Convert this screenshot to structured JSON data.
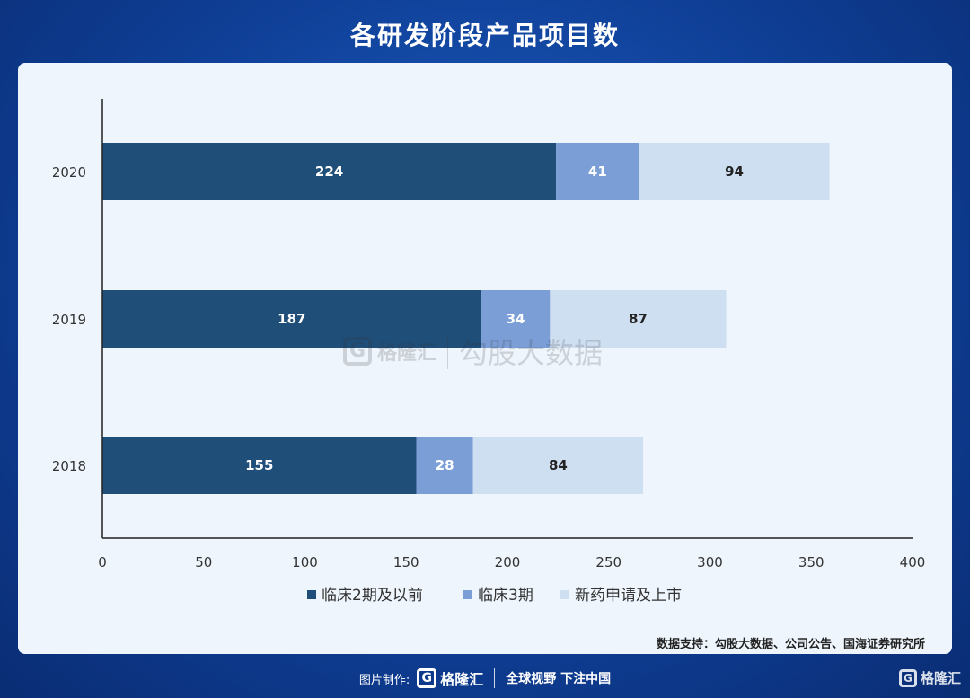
{
  "title": "各研发阶段产品项目数",
  "source": "数据支持：勾股大数据、公司公告、国海证券研究所",
  "watermark": {
    "brand": "格隆汇",
    "text": "勾股大数据"
  },
  "footer": {
    "made_by": "图片制作:",
    "brand": "格隆汇",
    "slogan": "全球视野 下注中国",
    "corner_brand": "格隆汇"
  },
  "chart_data": {
    "type": "bar",
    "orientation": "horizontal",
    "stacked": true,
    "categories": [
      "2020",
      "2019",
      "2018"
    ],
    "series": [
      {
        "name": "临床2期及以前",
        "values": [
          224,
          187,
          155
        ],
        "color": "#1f4e79",
        "label_color": "#ffffff"
      },
      {
        "name": "临床3期",
        "values": [
          41,
          34,
          28
        ],
        "color": "#7b9ed6",
        "label_color": "#ffffff"
      },
      {
        "name": "新药申请及上市",
        "values": [
          94,
          87,
          84
        ],
        "color": "#cfdff2",
        "label_color": "#222222"
      }
    ],
    "xlim": [
      0,
      400
    ],
    "xticks": [
      0,
      50,
      100,
      150,
      200,
      250,
      300,
      350,
      400
    ],
    "grid": false,
    "legend_position": "bottom"
  }
}
